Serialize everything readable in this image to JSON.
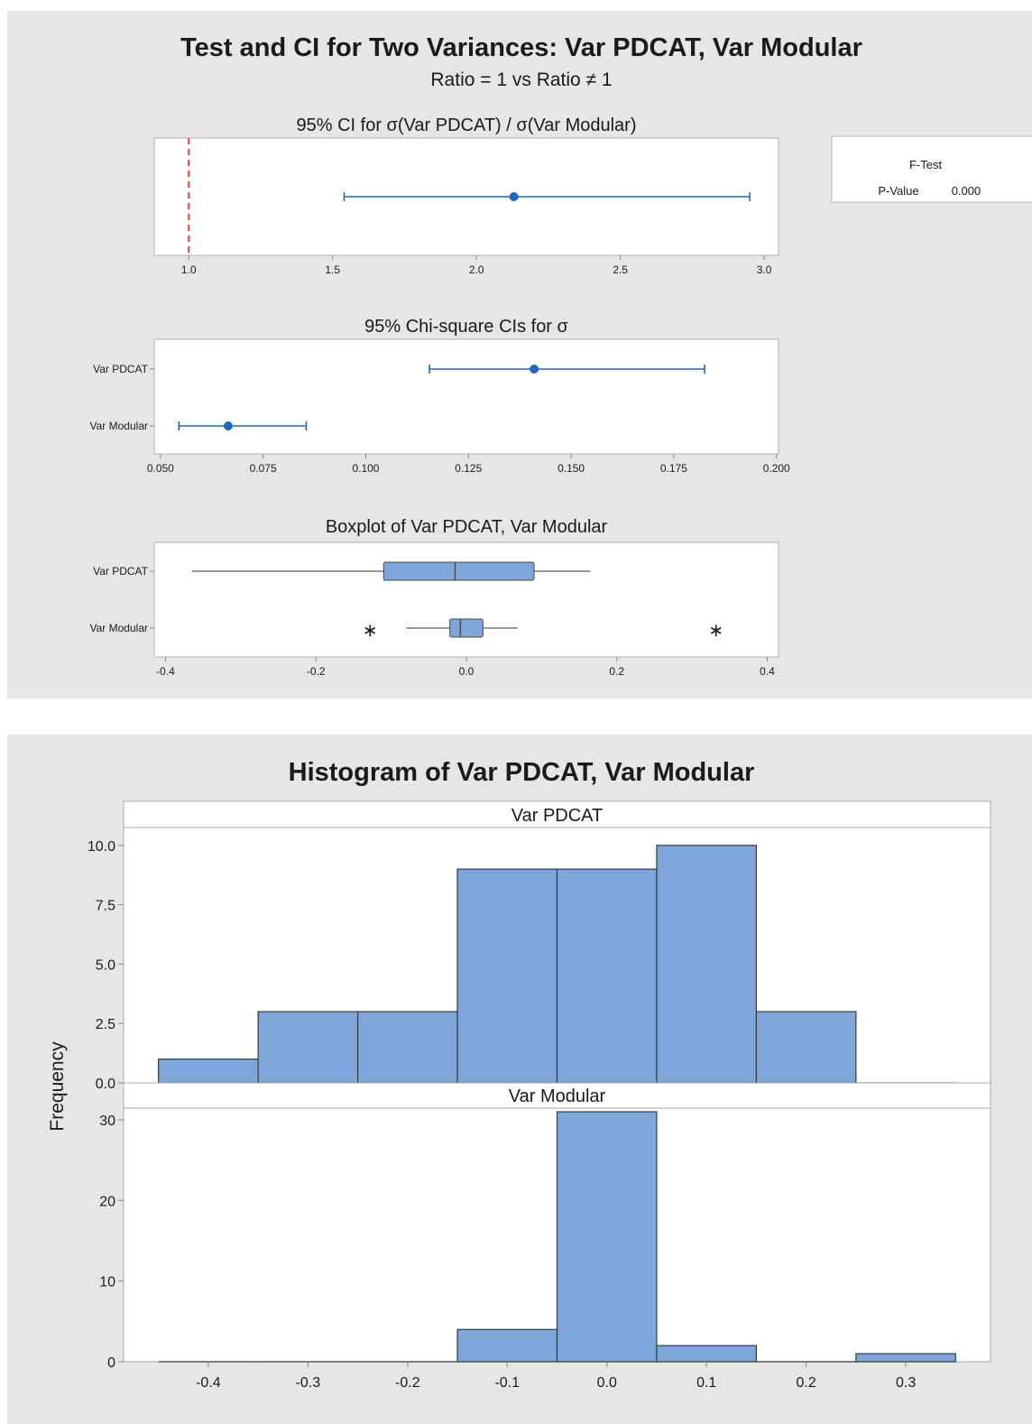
{
  "top_panel": {
    "title": "Test and CI for Two Variances: Var PDCAT, Var Modular",
    "subtitle": "Ratio = 1 vs Ratio ≠ 1",
    "ftest": {
      "heading": "F-Test",
      "label": "P-Value",
      "value": "0.000"
    }
  },
  "histogram": {
    "title": "Histogram of Var PDCAT, Var Modular"
  },
  "colors": {
    "ci_blue": "#2166b8",
    "box_fill": "#7fa6da",
    "bar_fill": "#7fa6da",
    "bar_edge": "#3a3a3a",
    "ref_line": "#e06060",
    "whisker": "#999999"
  },
  "chart_data": [
    {
      "type": "errorbar",
      "title": "95% CI for σ(Var PDCAT) / σ(Var Modular)",
      "xlim": [
        0.88,
        3.05
      ],
      "xticks": [
        "1.0",
        "1.5",
        "2.0",
        "2.5",
        "3.0"
      ],
      "reference_line": 1.0,
      "estimate": 2.13,
      "ci": [
        1.54,
        2.95
      ]
    },
    {
      "type": "errorbar",
      "title": "95% Chi-square CIs for σ",
      "xlim": [
        0.0485,
        0.2005
      ],
      "xticks": [
        "0.050",
        "0.075",
        "0.100",
        "0.125",
        "0.150",
        "0.175",
        "0.200"
      ],
      "categories": [
        "Var PDCAT",
        "Var Modular"
      ],
      "estimates": [
        0.141,
        0.0665
      ],
      "lower": [
        0.1155,
        0.0545
      ],
      "upper": [
        0.1825,
        0.0855
      ]
    },
    {
      "type": "boxplot",
      "title": "Boxplot of Var PDCAT, Var Modular",
      "xlim": [
        -0.415,
        0.415
      ],
      "xticks": [
        "-0.4",
        "-0.2",
        "0.0",
        "0.2",
        "0.4"
      ],
      "categories": [
        "Var PDCAT",
        "Var Modular"
      ],
      "boxes": [
        {
          "whisker_low": -0.365,
          "q1": -0.11,
          "median": -0.015,
          "q3": 0.09,
          "whisker_high": 0.165,
          "outliers": []
        },
        {
          "whisker_low": -0.08,
          "q1": -0.022,
          "median": -0.008,
          "q3": 0.022,
          "whisker_high": 0.068,
          "outliers": [
            -0.128,
            0.332
          ]
        }
      ]
    },
    {
      "type": "histogram",
      "ylabel": "Frequency",
      "bin_width": 0.1,
      "bin_centers": [
        -0.4,
        -0.3,
        -0.2,
        -0.1,
        0.0,
        0.1,
        0.2,
        0.3
      ],
      "xticks": [
        "-0.4",
        "-0.3",
        "-0.2",
        "-0.1",
        "0.0",
        "0.1",
        "0.2",
        "0.3"
      ],
      "xlim": [
        -0.485,
        0.385
      ],
      "series": [
        {
          "name": "Var PDCAT",
          "values": [
            1,
            3,
            3,
            9,
            9,
            10,
            3,
            0
          ],
          "ylim": [
            0,
            10.6
          ],
          "yticks": [
            "0.0",
            "2.5",
            "5.0",
            "7.5",
            "10.0"
          ]
        },
        {
          "name": "Var Modular",
          "values": [
            0,
            0,
            0,
            4,
            31,
            2,
            0,
            1
          ],
          "ylim": [
            0,
            31
          ],
          "yticks": [
            "0",
            "10",
            "20",
            "30"
          ]
        }
      ]
    }
  ]
}
